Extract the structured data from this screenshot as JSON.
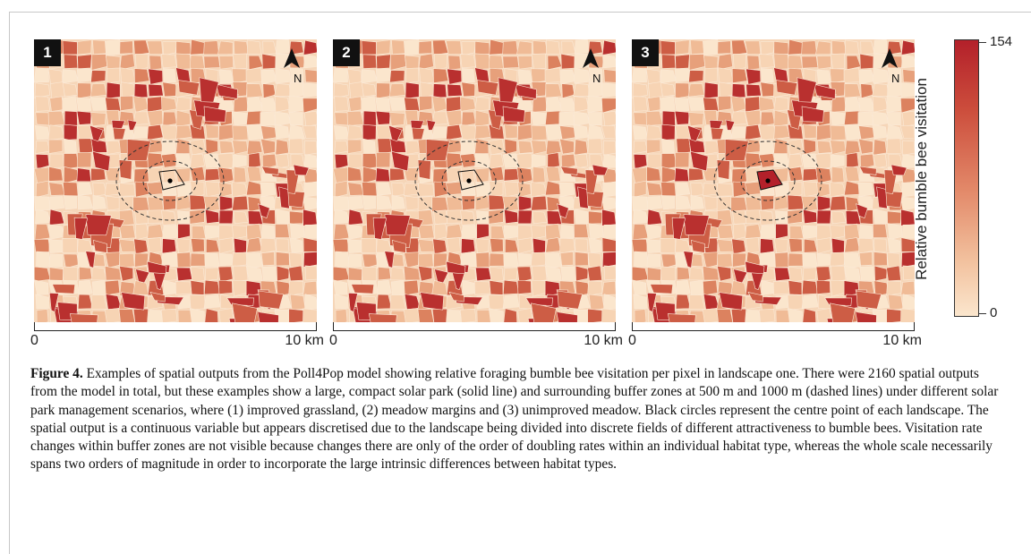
{
  "panels": [
    {
      "label": "1",
      "scale_start": "0",
      "scale_end": "10 km",
      "north": "N"
    },
    {
      "label": "2",
      "scale_start": "0",
      "scale_end": "10 km",
      "north": "N"
    },
    {
      "label": "3",
      "scale_start": "0",
      "scale_end": "10 km",
      "north": "N"
    }
  ],
  "colorbar": {
    "title": "Relative bumble bee visitation",
    "max_label": "154",
    "min_label": "0",
    "color_high": "#b3202a",
    "color_low": "#fbe6cd"
  },
  "caption": {
    "label": "Figure 4.",
    "text": " Examples of spatial outputs from the Poll4Pop model showing relative foraging bumble bee visitation per pixel in landscape one. There were 2160 spatial outputs from the model in total, but these examples show a large, compact solar park (solid line) and surrounding buffer zones at 500 m and 1000 m (dashed lines) under different solar park management scenarios, where (1) improved grassland, (2) meadow margins and (3) unimproved meadow. Black circles represent the centre point of each landscape. The spatial output is a continuous variable but appears discretised due to the landscape being divided into discrete fields of different attractiveness to bumble bees. Visitation rate changes within buffer zones are not visible because changes there are only of the order of doubling rates within an individual habitat type, whereas the whole scale necessarily spans two orders of magnitude in order to incorporate the large intrinsic differences between habitat types."
  }
}
